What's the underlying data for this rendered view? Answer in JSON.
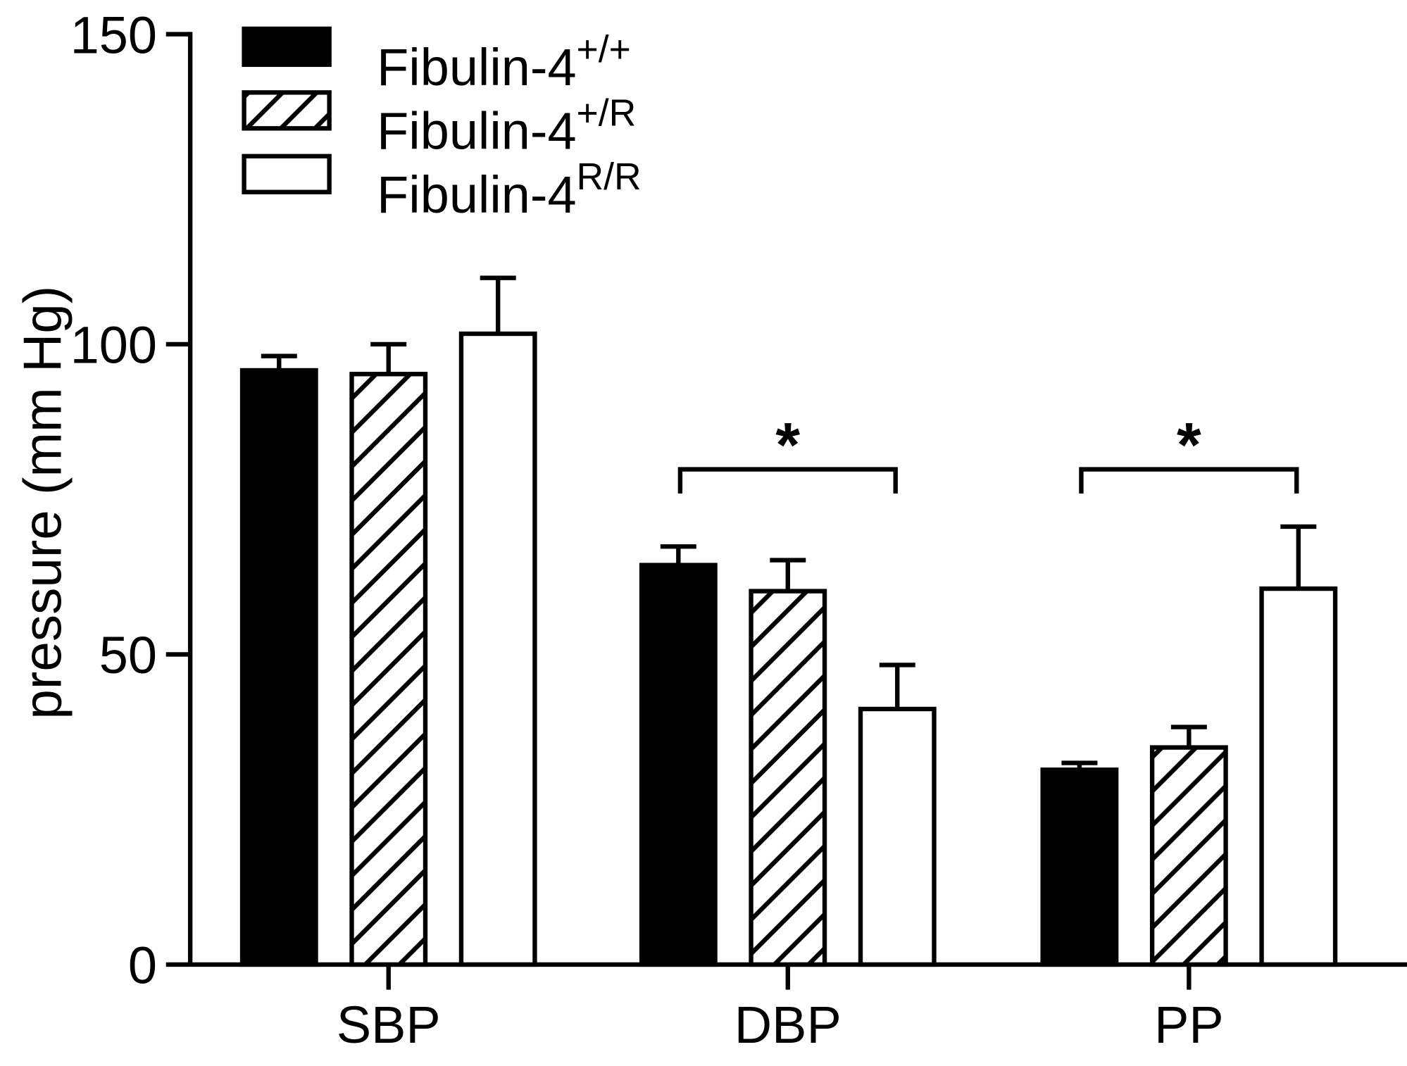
{
  "chart_data": {
    "type": "bar",
    "title": "",
    "xlabel": "",
    "ylabel": "pressure (mm Hg)",
    "ylim": [
      0,
      150
    ],
    "yticks": [
      "0",
      "50",
      "100",
      "150"
    ],
    "ytick_values": [
      0,
      50,
      100,
      150
    ],
    "categories": [
      "SBP",
      "DBP",
      "PP"
    ],
    "grid": false,
    "legend_position": "top-left",
    "series": [
      {
        "name": "Fibulin-4",
        "sup": "+/+",
        "fill": "solid",
        "color": "#000000",
        "values": [
          95.8,
          64.4,
          31.4
        ],
        "error": [
          2.3,
          3.0,
          1.1
        ]
      },
      {
        "name": "Fibulin-4",
        "sup": "+/R",
        "fill": "hatched",
        "color": "#000000",
        "values": [
          95.2,
          60.2,
          35.0
        ],
        "error": [
          4.8,
          5.0,
          3.3
        ]
      },
      {
        "name": "Fibulin-4",
        "sup": "R/R",
        "fill": "open",
        "color": "#ffffff",
        "values": [
          101.7,
          41.2,
          60.6
        ],
        "error": [
          9.0,
          7.1,
          10.0
        ]
      }
    ],
    "annotations": [
      {
        "category": "DBP",
        "text": "*",
        "between": [
          "+/+",
          "R/R"
        ]
      },
      {
        "category": "PP",
        "text": "*",
        "between": [
          "+/+",
          "R/R"
        ]
      }
    ]
  }
}
